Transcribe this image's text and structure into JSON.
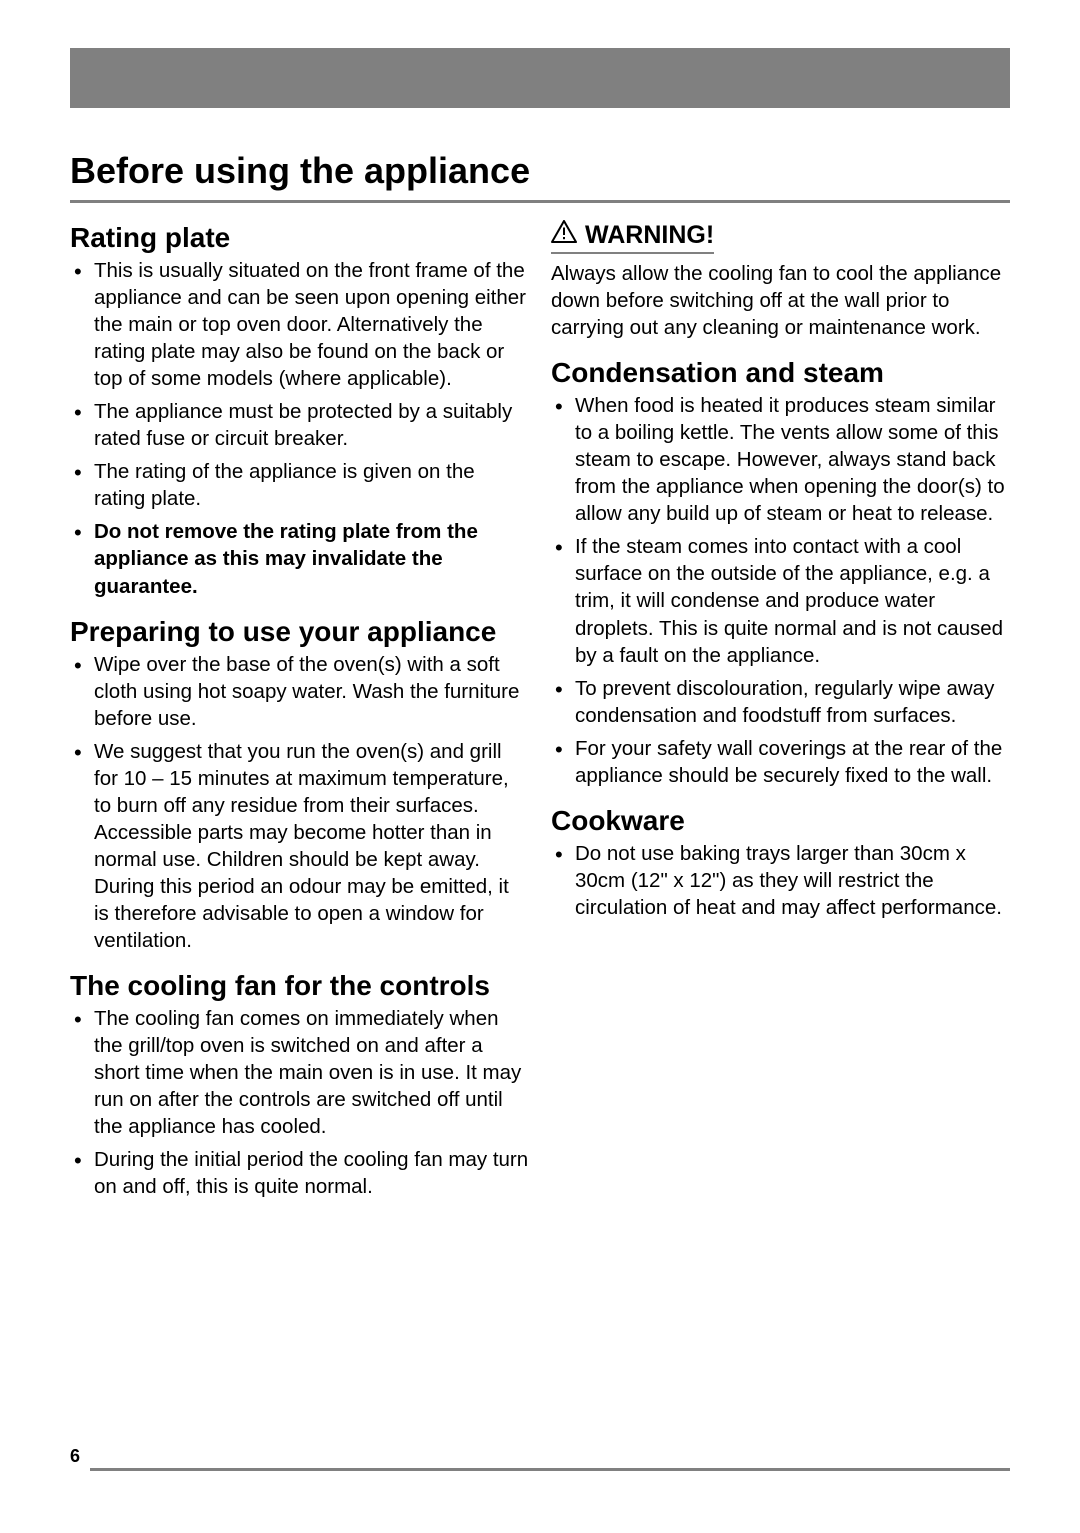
{
  "page": {
    "title": "Before using the appliance",
    "number": "6"
  },
  "left": {
    "rating_plate": {
      "heading": "Rating plate",
      "items": [
        {
          "parts": [
            {
              "text": "This is usually situated on the front frame of the appliance and can be seen upon opening either the main or top oven door. Alternatively the rating plate may also be found on the back or top of some models (where applicable).",
              "bold": false
            }
          ]
        },
        {
          "parts": [
            {
              "text": "The appliance must be protected by a suitably rated fuse or circuit breaker.",
              "bold": false
            }
          ]
        },
        {
          "parts": [
            {
              "text": "The rating of the appliance is given on the rating plate.",
              "bold": false
            }
          ]
        },
        {
          "parts": [
            {
              "text": "Do not remove the rating plate from the appliance as this may invalidate the guarantee.",
              "bold": true
            }
          ]
        }
      ]
    },
    "preparing": {
      "heading": "Preparing to use your appliance",
      "items": [
        {
          "parts": [
            {
              "text": "Wipe over the base of the oven(s) with a soft cloth using hot soapy water. Wash the furniture before use.",
              "bold": false
            }
          ]
        },
        {
          "parts": [
            {
              "text": "We suggest that you run the oven(s) and grill for 10 – 15 minutes at maximum temperature, to burn off any residue from their surfaces. Accessible parts may become hotter than in normal use. Children should be kept away. During this period an odour may be emitted, it is therefore advisable to open a window for ventilation.",
              "bold": false
            }
          ]
        }
      ]
    },
    "cooling_fan": {
      "heading": "The cooling fan for the controls",
      "items": [
        {
          "parts": [
            {
              "text": "The cooling fan comes on immediately when the grill/top oven is switched on and after a short time when the main oven is in use. It may run on after the controls are switched off until the appliance has cooled.",
              "bold": false
            }
          ]
        },
        {
          "parts": [
            {
              "text": "During the initial period the cooling fan may turn on and off, this is quite normal.",
              "bold": false
            }
          ]
        }
      ]
    }
  },
  "right": {
    "warning": {
      "heading": "WARNING!",
      "body": "Always allow the cooling fan to cool the appliance down before switching off at the wall prior to carrying out any cleaning or maintenance work."
    },
    "condensation": {
      "heading": "Condensation and steam",
      "items": [
        {
          "parts": [
            {
              "text": "When food is heated it produces steam similar to a boiling kettle.  The vents allow some of this steam to escape. However, always stand back from the appliance when opening the door(s) to allow any build up of steam or heat to release.",
              "bold": false
            }
          ]
        },
        {
          "parts": [
            {
              "text": "If the steam comes into contact with a cool surface on the outside of the appliance, e.g. a trim, it will condense and produce water droplets.  This is quite normal and is not caused by a fault on the appliance.",
              "bold": false
            }
          ]
        },
        {
          "parts": [
            {
              "text": "To prevent discolouration, regularly wipe away condensation and foodstuff from surfaces.",
              "bold": false
            }
          ]
        },
        {
          "parts": [
            {
              "text": "For your safety wall coverings at the rear of the appliance should be securely fixed to the wall.",
              "bold": false
            }
          ]
        }
      ]
    },
    "cookware": {
      "heading": "Cookware",
      "items": [
        {
          "parts": [
            {
              "text": "Do not use baking trays larger than 30cm x 30cm (12\" x 12\") as they will restrict the circulation of heat and may affect performance.",
              "bold": false
            }
          ]
        }
      ]
    }
  },
  "colors": {
    "header_bar": "#808080",
    "rule": "#808080",
    "text": "#000000",
    "background": "#ffffff"
  }
}
